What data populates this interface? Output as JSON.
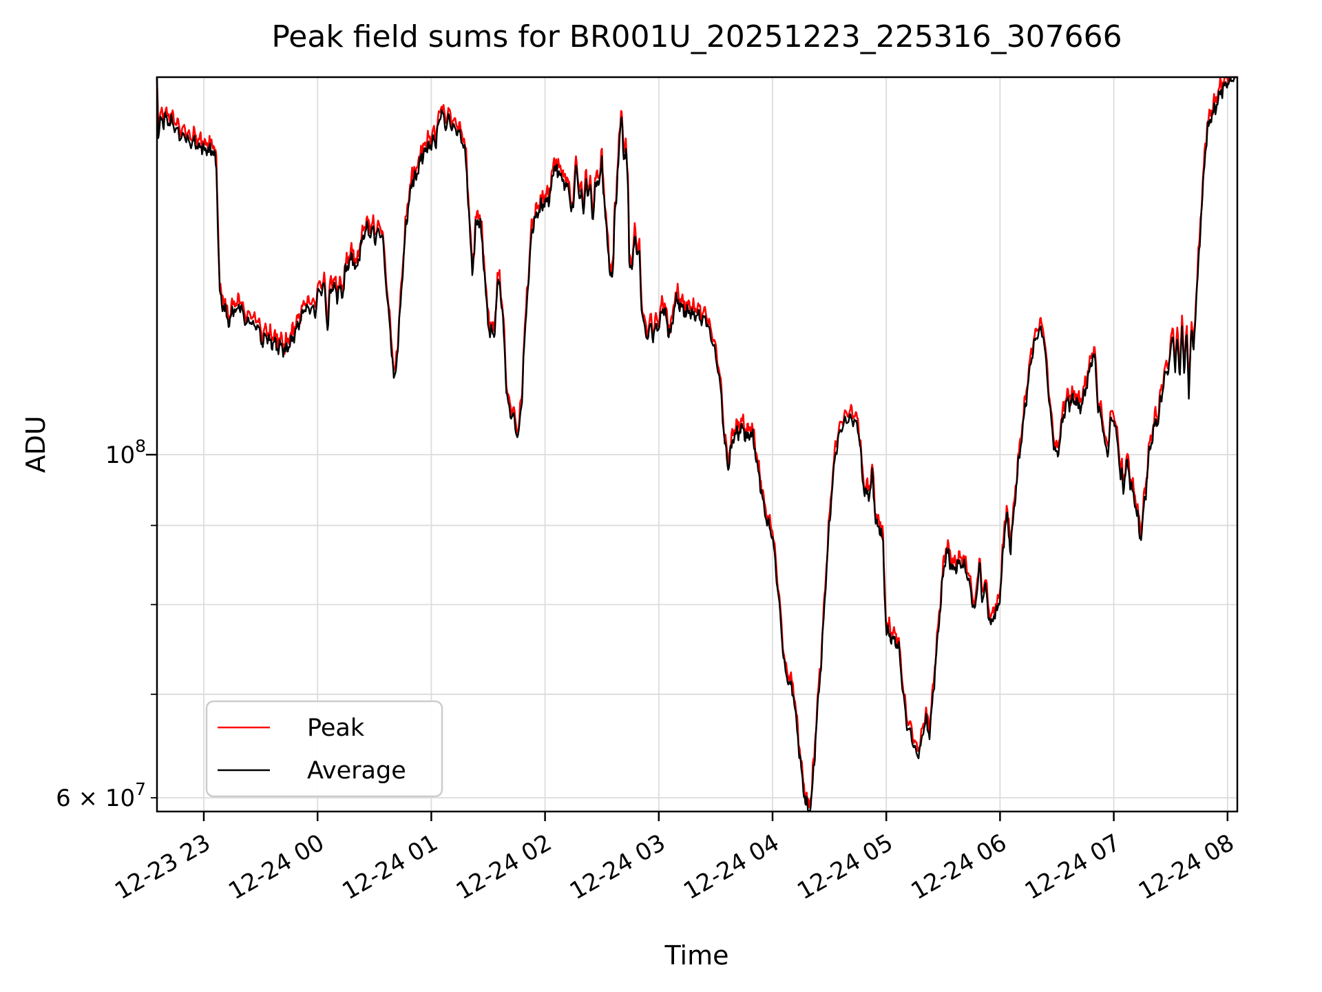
{
  "window": {
    "title": "Peak field sums figure"
  },
  "chart_data": {
    "type": "line",
    "title": "Peak field sums for BR001U_20251223_225316_307666",
    "xlabel": "Time",
    "ylabel": "ADU",
    "grid": true,
    "legend_position": "lower-left",
    "x_axis": {
      "unit": "hours since 12-23 22:00",
      "min": 0.588,
      "max": 10.086,
      "tick_values": [
        1,
        2,
        3,
        4,
        5,
        6,
        7,
        8,
        9,
        10
      ],
      "tick_labels": [
        "12-23 23",
        "12-24 00",
        "12-24 01",
        "12-24 02",
        "12-24 03",
        "12-24 04",
        "12-24 05",
        "12-24 06",
        "12-24 07",
        "12-24 08"
      ],
      "tick_rotation_deg": 30
    },
    "y_axis": {
      "scale": "log",
      "unit": "ADU",
      "points_multiplier": 1000000,
      "ylim_millions": [
        58.8,
        175.4
      ],
      "gridline_values_millions": [
        60,
        70,
        80,
        90,
        100
      ],
      "major_tick_label": {
        "prefix": "",
        "base": "10",
        "exp": "8",
        "value_millions": 100
      },
      "minor_tick_label": {
        "prefix": "6 × ",
        "base": "10",
        "exp": "7",
        "value_millions": 60
      }
    },
    "series": [
      {
        "name": "Peak",
        "color": "#ff0000",
        "note": "overlaps Average, ~1% higher; drawn beneath"
      },
      {
        "name": "Average",
        "color": "#000000"
      }
    ],
    "points_unit": "1e6 ADU (t = hours since 12-23 22:00)",
    "points": [
      [
        0.588,
        175.4
      ],
      [
        0.6,
        160.3
      ],
      [
        0.62,
        165.3
      ],
      [
        0.64,
        163.6
      ],
      [
        0.66,
        166.1
      ],
      [
        0.68,
        163.6
      ],
      [
        0.71,
        164.4
      ],
      [
        0.74,
        162.7
      ],
      [
        0.77,
        161.9
      ],
      [
        0.8,
        160.3
      ],
      [
        0.83,
        161.1
      ],
      [
        0.86,
        159.5
      ],
      [
        0.89,
        158.6
      ],
      [
        0.92,
        159.5
      ],
      [
        0.95,
        157.8
      ],
      [
        0.98,
        158.6
      ],
      [
        1.01,
        157.0
      ],
      [
        1.04,
        157.8
      ],
      [
        1.06,
        156.5
      ],
      [
        1.08,
        157.4
      ],
      [
        1.1,
        155.7
      ],
      [
        1.11,
        152.0
      ],
      [
        1.12,
        144.6
      ],
      [
        1.13,
        135.2
      ],
      [
        1.14,
        127.9
      ],
      [
        1.16,
        124.5
      ],
      [
        1.18,
        125.3
      ],
      [
        1.2,
        122.8
      ],
      [
        1.22,
        121.5
      ],
      [
        1.24,
        122.8
      ],
      [
        1.27,
        124.5
      ],
      [
        1.29,
        123.4
      ],
      [
        1.31,
        125.3
      ],
      [
        1.33,
        124.5
      ],
      [
        1.36,
        122.1
      ],
      [
        1.38,
        121.5
      ],
      [
        1.41,
        122.1
      ],
      [
        1.44,
        120.9
      ],
      [
        1.46,
        121.5
      ],
      [
        1.49,
        120.3
      ],
      [
        1.52,
        117.5
      ],
      [
        1.54,
        119.8
      ],
      [
        1.57,
        118.4
      ],
      [
        1.6,
        117.8
      ],
      [
        1.62,
        118.4
      ],
      [
        1.65,
        117.2
      ],
      [
        1.68,
        117.8
      ],
      [
        1.71,
        116.6
      ],
      [
        1.74,
        117.2
      ],
      [
        1.77,
        118.4
      ],
      [
        1.8,
        119.8
      ],
      [
        1.83,
        121.5
      ],
      [
        1.86,
        122.8
      ],
      [
        1.89,
        124.5
      ],
      [
        1.92,
        123.9
      ],
      [
        1.95,
        124.5
      ],
      [
        1.98,
        123.4
      ],
      [
        2.0,
        127.3
      ],
      [
        2.04,
        127.9
      ],
      [
        2.06,
        128.6
      ],
      [
        2.09,
        119.8
      ],
      [
        2.11,
        127.9
      ],
      [
        2.15,
        128.6
      ],
      [
        2.17,
        126.6
      ],
      [
        2.19,
        128.3
      ],
      [
        2.22,
        126.6
      ],
      [
        2.24,
        130.6
      ],
      [
        2.28,
        133.3
      ],
      [
        2.31,
        134.2
      ],
      [
        2.34,
        131.4
      ],
      [
        2.37,
        135.2
      ],
      [
        2.4,
        138.0
      ],
      [
        2.43,
        140.2
      ],
      [
        2.46,
        138.7
      ],
      [
        2.49,
        140.2
      ],
      [
        2.5,
        137.7
      ],
      [
        2.53,
        139.5
      ],
      [
        2.55,
        138.7
      ],
      [
        2.57,
        139.0
      ],
      [
        2.58,
        135.2
      ],
      [
        2.6,
        129.5
      ],
      [
        2.63,
        122.1
      ],
      [
        2.66,
        115.2
      ],
      [
        2.67,
        112.0
      ],
      [
        2.68,
        111.9
      ],
      [
        2.71,
        118.6
      ],
      [
        2.74,
        128.6
      ],
      [
        2.77,
        138.3
      ],
      [
        2.8,
        145.4
      ],
      [
        2.83,
        149.7
      ],
      [
        2.85,
        151.9
      ],
      [
        2.87,
        150.2
      ],
      [
        2.9,
        156.0
      ],
      [
        2.92,
        154.0
      ],
      [
        2.94,
        158.6
      ],
      [
        2.96,
        155.9
      ],
      [
        2.98,
        160.0
      ],
      [
        3.0,
        157.5
      ],
      [
        3.02,
        161.1
      ],
      [
        3.04,
        158.6
      ],
      [
        3.06,
        163.0
      ],
      [
        3.09,
        167.0
      ],
      [
        3.11,
        164.4
      ],
      [
        3.13,
        162.7
      ],
      [
        3.15,
        165.3
      ],
      [
        3.17,
        163.6
      ],
      [
        3.2,
        162.7
      ],
      [
        3.23,
        161.9
      ],
      [
        3.26,
        160.3
      ],
      [
        3.29,
        157.8
      ],
      [
        3.31,
        153.0
      ],
      [
        3.33,
        143.7
      ],
      [
        3.35,
        134.6
      ],
      [
        3.36,
        131.8
      ],
      [
        3.38,
        136.0
      ],
      [
        3.39,
        140.2
      ],
      [
        3.41,
        142.0
      ],
      [
        3.43,
        141.0
      ],
      [
        3.45,
        136.0
      ],
      [
        3.47,
        130.6
      ],
      [
        3.49,
        123.5
      ],
      [
        3.51,
        120.3
      ],
      [
        3.53,
        120.4
      ],
      [
        3.55,
        119.0
      ],
      [
        3.56,
        121.5
      ],
      [
        3.58,
        127.9
      ],
      [
        3.6,
        129.9
      ],
      [
        3.61,
        126.6
      ],
      [
        3.63,
        121.8
      ],
      [
        3.65,
        115.3
      ],
      [
        3.66,
        110.0
      ],
      [
        3.68,
        107.4
      ],
      [
        3.7,
        106.3
      ],
      [
        3.73,
        105.6
      ],
      [
        3.74,
        103.7
      ],
      [
        3.77,
        102.6
      ],
      [
        3.78,
        105.7
      ],
      [
        3.8,
        109.1
      ],
      [
        3.81,
        115.3
      ],
      [
        3.83,
        121.2
      ],
      [
        3.84,
        126.6
      ],
      [
        3.86,
        130.6
      ],
      [
        3.88,
        139.4
      ],
      [
        3.9,
        141.0
      ],
      [
        3.91,
        141.5
      ],
      [
        3.93,
        143.1
      ],
      [
        3.95,
        143.7
      ],
      [
        3.97,
        144.6
      ],
      [
        3.99,
        145.4
      ],
      [
        4.02,
        145.9
      ],
      [
        4.04,
        147.2
      ],
      [
        4.05,
        148.3
      ],
      [
        4.07,
        151.5
      ],
      [
        4.08,
        153.7
      ],
      [
        4.09,
        154.2
      ],
      [
        4.11,
        150.9
      ],
      [
        4.13,
        153.0
      ],
      [
        4.16,
        149.1
      ],
      [
        4.18,
        150.3
      ],
      [
        4.21,
        148.1
      ],
      [
        4.22,
        145.8
      ],
      [
        4.25,
        143.7
      ],
      [
        4.27,
        154.9
      ],
      [
        4.28,
        153.2
      ],
      [
        4.3,
        144.8
      ],
      [
        4.32,
        149.1
      ],
      [
        4.34,
        142.1
      ],
      [
        4.36,
        151.5
      ],
      [
        4.38,
        147.0
      ],
      [
        4.4,
        149.1
      ],
      [
        4.42,
        141.5
      ],
      [
        4.44,
        148.1
      ],
      [
        4.46,
        150.8
      ],
      [
        4.48,
        149.6
      ],
      [
        4.5,
        154.9
      ],
      [
        4.51,
        150.3
      ],
      [
        4.53,
        142.5
      ],
      [
        4.56,
        134.6
      ],
      [
        4.58,
        129.0
      ],
      [
        4.6,
        132.0
      ],
      [
        4.61,
        143.7
      ],
      [
        4.63,
        145.8
      ],
      [
        4.65,
        158.6
      ],
      [
        4.67,
        166.0
      ],
      [
        4.68,
        161.9
      ],
      [
        4.69,
        154.8
      ],
      [
        4.71,
        158.7
      ],
      [
        4.73,
        148.1
      ],
      [
        4.74,
        133.4
      ],
      [
        4.77,
        132.0
      ],
      [
        4.79,
        139.5
      ],
      [
        4.81,
        134.3
      ],
      [
        4.83,
        134.8
      ],
      [
        4.85,
        123.9
      ],
      [
        4.87,
        121.2
      ],
      [
        4.89,
        119.8
      ],
      [
        4.91,
        119.0
      ],
      [
        4.93,
        122.0
      ],
      [
        4.95,
        118.6
      ],
      [
        4.97,
        120.3
      ],
      [
        4.98,
        121.6
      ],
      [
        5.0,
        120.3
      ],
      [
        5.03,
        124.7
      ],
      [
        5.06,
        123.4
      ],
      [
        5.08,
        120.3
      ],
      [
        5.11,
        119.8
      ],
      [
        5.14,
        125.3
      ],
      [
        5.16,
        125.7
      ],
      [
        5.2,
        124.7
      ],
      [
        5.24,
        123.4
      ],
      [
        5.27,
        123.9
      ],
      [
        5.3,
        122.8
      ],
      [
        5.35,
        123.2
      ],
      [
        5.38,
        122.1
      ],
      [
        5.41,
        122.8
      ],
      [
        5.44,
        120.3
      ],
      [
        5.47,
        118.3
      ],
      [
        5.48,
        117.6
      ],
      [
        5.51,
        114.9
      ],
      [
        5.53,
        112.3
      ],
      [
        5.55,
        109.1
      ],
      [
        5.56,
        106.7
      ],
      [
        5.57,
        103.7
      ],
      [
        5.58,
        101.5
      ],
      [
        5.59,
        100.9
      ],
      [
        5.61,
        97.9
      ],
      [
        5.63,
        100.0
      ],
      [
        5.65,
        102.3
      ],
      [
        5.67,
        102.9
      ],
      [
        5.7,
        103.5
      ],
      [
        5.72,
        103.8
      ],
      [
        5.74,
        104.3
      ],
      [
        5.77,
        102.2
      ],
      [
        5.79,
        102.8
      ],
      [
        5.81,
        103.3
      ],
      [
        5.84,
        101.4
      ],
      [
        5.87,
        97.9
      ],
      [
        5.9,
        95.1
      ],
      [
        5.93,
        91.8
      ],
      [
        5.96,
        90.1
      ],
      [
        6.0,
        88.5
      ],
      [
        6.03,
        84.2
      ],
      [
        6.06,
        80.0
      ],
      [
        6.09,
        75.0
      ],
      [
        6.11,
        72.4
      ],
      [
        6.14,
        71.3
      ],
      [
        6.16,
        70.7
      ],
      [
        6.18,
        70.3
      ],
      [
        6.19,
        69.3
      ],
      [
        6.23,
        64.9
      ],
      [
        6.27,
        60.9
      ],
      [
        6.29,
        59.6
      ],
      [
        6.31,
        58.9
      ],
      [
        6.32,
        58.8
      ],
      [
        6.34,
        59.4
      ],
      [
        6.37,
        64.0
      ],
      [
        6.4,
        69.3
      ],
      [
        6.43,
        73.9
      ],
      [
        6.46,
        80.7
      ],
      [
        6.49,
        87.9
      ],
      [
        6.52,
        94.4
      ],
      [
        6.55,
        99.8
      ],
      [
        6.58,
        102.7
      ],
      [
        6.61,
        104.2
      ],
      [
        6.64,
        105.0
      ],
      [
        6.69,
        105.5
      ],
      [
        6.72,
        105.1
      ],
      [
        6.75,
        104.4
      ],
      [
        6.77,
        101.4
      ],
      [
        6.79,
        96.5
      ],
      [
        6.81,
        94.6
      ],
      [
        6.84,
        94.0
      ],
      [
        6.86,
        94.8
      ],
      [
        6.88,
        97.5
      ],
      [
        6.89,
        94.0
      ],
      [
        6.91,
        90.4
      ],
      [
        6.93,
        89.7
      ],
      [
        6.95,
        89.5
      ],
      [
        6.97,
        87.9
      ],
      [
        6.98,
        83.0
      ],
      [
        7.0,
        76.9
      ],
      [
        7.02,
        76.5
      ],
      [
        7.05,
        76.1
      ],
      [
        7.08,
        75.8
      ],
      [
        7.11,
        75.0
      ],
      [
        7.15,
        69.8
      ],
      [
        7.18,
        66.8
      ],
      [
        7.22,
        65.9
      ],
      [
        7.24,
        64.9
      ],
      [
        7.27,
        64.0
      ],
      [
        7.3,
        64.4
      ],
      [
        7.32,
        66.1
      ],
      [
        7.35,
        67.3
      ],
      [
        7.36,
        66.8
      ],
      [
        7.38,
        65.9
      ],
      [
        7.41,
        69.8
      ],
      [
        7.44,
        74.4
      ],
      [
        7.47,
        78.9
      ],
      [
        7.5,
        83.6
      ],
      [
        7.53,
        86.6
      ],
      [
        7.56,
        85.4
      ],
      [
        7.59,
        84.2
      ],
      [
        7.62,
        84.8
      ],
      [
        7.66,
        85.0
      ],
      [
        7.7,
        84.2
      ],
      [
        7.73,
        82.6
      ],
      [
        7.76,
        80.3
      ],
      [
        7.78,
        79.1
      ],
      [
        7.82,
        85.4
      ],
      [
        7.84,
        80.3
      ],
      [
        7.87,
        82.4
      ],
      [
        7.9,
        78.9
      ],
      [
        7.92,
        77.5
      ],
      [
        7.95,
        79.1
      ],
      [
        7.97,
        78.9
      ],
      [
        8.0,
        80.9
      ],
      [
        8.02,
        84.8
      ],
      [
        8.04,
        89.3
      ],
      [
        8.06,
        91.7
      ],
      [
        8.08,
        88.2
      ],
      [
        8.09,
        86.9
      ],
      [
        8.12,
        91.4
      ],
      [
        8.15,
        96.8
      ],
      [
        8.18,
        101.1
      ],
      [
        8.21,
        105.6
      ],
      [
        8.24,
        110.2
      ],
      [
        8.27,
        114.9
      ],
      [
        8.3,
        117.8
      ],
      [
        8.33,
        119.6
      ],
      [
        8.35,
        120.2
      ],
      [
        8.38,
        119.7
      ],
      [
        8.41,
        113.4
      ],
      [
        8.44,
        107.0
      ],
      [
        8.47,
        101.8
      ],
      [
        8.5,
        99.6
      ],
      [
        8.51,
        100.0
      ],
      [
        8.54,
        104.1
      ],
      [
        8.57,
        107.0
      ],
      [
        8.59,
        108.5
      ],
      [
        8.61,
        107.9
      ],
      [
        8.63,
        108.8
      ],
      [
        8.65,
        108.0
      ],
      [
        8.67,
        108.5
      ],
      [
        8.69,
        107.0
      ],
      [
        8.72,
        107.7
      ],
      [
        8.75,
        110.2
      ],
      [
        8.78,
        112.6
      ],
      [
        8.8,
        114.8
      ],
      [
        8.82,
        115.9
      ],
      [
        8.84,
        114.3
      ],
      [
        8.86,
        107.0
      ],
      [
        8.88,
        106.2
      ],
      [
        8.9,
        105.0
      ],
      [
        8.92,
        101.8
      ],
      [
        8.93,
        100.8
      ],
      [
        8.95,
        100.5
      ],
      [
        8.97,
        105.0
      ],
      [
        9.0,
        105.6
      ],
      [
        9.02,
        102.9
      ],
      [
        9.04,
        101.1
      ],
      [
        9.06,
        96.1
      ],
      [
        9.07,
        98.0
      ],
      [
        9.08,
        94.6
      ],
      [
        9.1,
        97.2
      ],
      [
        9.12,
        99.0
      ],
      [
        9.15,
        95.4
      ],
      [
        9.18,
        93.6
      ],
      [
        9.2,
        91.8
      ],
      [
        9.22,
        90.1
      ],
      [
        9.23,
        88.2
      ],
      [
        9.25,
        89.3
      ],
      [
        9.26,
        92.0
      ],
      [
        9.29,
        96.1
      ],
      [
        9.31,
        100.4
      ],
      [
        9.33,
        101.8
      ],
      [
        9.35,
        103.3
      ],
      [
        9.37,
        105.6
      ],
      [
        9.39,
        104.4
      ],
      [
        9.41,
        108.5
      ],
      [
        9.43,
        110.2
      ],
      [
        9.45,
        112.6
      ],
      [
        9.47,
        113.4
      ],
      [
        9.49,
        114.4
      ],
      [
        9.5,
        116.6
      ],
      [
        9.52,
        120.3
      ],
      [
        9.54,
        112.6
      ],
      [
        9.56,
        119.7
      ],
      [
        9.58,
        111.8
      ],
      [
        9.6,
        120.9
      ],
      [
        9.62,
        113.4
      ],
      [
        9.64,
        120.3
      ],
      [
        9.66,
        109.4
      ],
      [
        9.68,
        120.3
      ],
      [
        9.7,
        116.7
      ],
      [
        9.72,
        123.6
      ],
      [
        9.74,
        130.9
      ],
      [
        9.76,
        139.9
      ],
      [
        9.78,
        147.0
      ],
      [
        9.8,
        155.7
      ],
      [
        9.82,
        161.3
      ],
      [
        9.84,
        163.7
      ],
      [
        9.86,
        165.5
      ],
      [
        9.88,
        166.6
      ],
      [
        9.9,
        167.9
      ],
      [
        9.93,
        171.0
      ],
      [
        9.96,
        172.7
      ],
      [
        10.0,
        174.0
      ],
      [
        10.04,
        174.8
      ],
      [
        10.086,
        175.4
      ]
    ]
  },
  "legend": {
    "entries": [
      "Peak",
      "Average"
    ]
  }
}
